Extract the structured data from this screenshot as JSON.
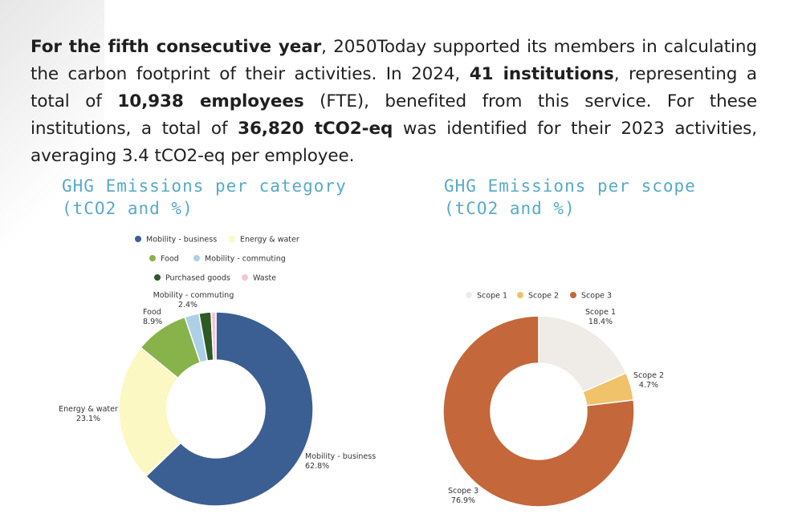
{
  "intro": {
    "p1_bold": "For the fifth consecutive year",
    "p2": ", 2050Today supported its members in calculating the carbon footprint of their activities. In 2024, ",
    "p3_bold": "41 institutions",
    "p4": ", representing a total of ",
    "p5_bold": "10,938 employees",
    "p6": " (FTE), benefited from this service. For these institutions, a total of ",
    "p7_bold": "36,820 tCO2-eq",
    "p8": " was identified for their 2023 activities, averaging 3.4 tCO2-eq per employee."
  },
  "chart_data": [
    {
      "type": "pie",
      "title_line1": "GHG Emissions per category",
      "title_line2": "(tCO2 and %)",
      "legend_position": "top",
      "categories": [
        "Mobility - business",
        "Energy & water",
        "Food",
        "Mobility - commuting",
        "Purchased goods",
        "Waste"
      ],
      "values": [
        62.8,
        23.1,
        8.9,
        2.4,
        2.0,
        0.8
      ],
      "value_labels": [
        "62.8%",
        "23.1%",
        "8.9%",
        "2.4%",
        "",
        ""
      ],
      "colors": [
        "#3b5e93",
        "#fcf8c4",
        "#88b24a",
        "#abd0e8",
        "#2d5a27",
        "#f5c6d8"
      ]
    },
    {
      "type": "pie",
      "title_line1": "GHG Emissions per scope",
      "title_line2": "(tCO2 and %)",
      "legend_position": "top",
      "categories": [
        "Scope 1",
        "Scope 2",
        "Scope 3"
      ],
      "values": [
        18.4,
        4.7,
        76.9
      ],
      "value_labels": [
        "18.4%",
        "4.7%",
        "76.9%"
      ],
      "colors": [
        "#efebe6",
        "#f0c26a",
        "#c4673a"
      ]
    }
  ]
}
